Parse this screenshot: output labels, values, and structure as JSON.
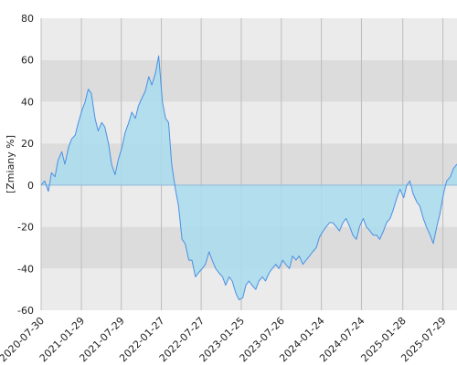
{
  "chart_data": {
    "type": "area",
    "title": "",
    "xlabel": "",
    "ylabel": "[Zmiany %]",
    "ylim": [
      -60,
      80
    ],
    "yticks": [
      -60,
      -40,
      -20,
      0,
      20,
      40,
      60,
      80
    ],
    "xticks": [
      "2020-07-30",
      "2021-01-29",
      "2021-07-29",
      "2022-01-27",
      "2022-07-27",
      "2023-01-25",
      "2023-07-26",
      "2024-01-24",
      "2024-07-24",
      "2025-01-28",
      "2025-07-29"
    ],
    "xlim": [
      "2020-07-30",
      "2025-10-01"
    ],
    "grid": true,
    "background_bands": true,
    "colors": {
      "line": "#4a90e2",
      "fill": "#a8dcef",
      "band_light": "#ebebeb",
      "band_dark": "#dcdcdc",
      "gridline": "#bdbdbd",
      "zero_line": "#8fb8d8"
    },
    "series": [
      {
        "x": [
          "2020-07-30",
          "2020-08-15",
          "2020-09-01",
          "2020-09-15",
          "2020-10-01",
          "2020-10-15",
          "2020-11-01",
          "2020-11-15",
          "2020-12-01",
          "2020-12-15",
          "2021-01-01",
          "2021-01-15",
          "2021-02-01",
          "2021-02-15",
          "2021-03-01",
          "2021-03-15",
          "2021-04-01",
          "2021-04-15",
          "2021-05-01",
          "2021-05-15",
          "2021-06-01",
          "2021-06-15",
          "2021-07-01",
          "2021-07-15",
          "2021-08-01",
          "2021-08-15",
          "2021-09-01",
          "2021-09-15",
          "2021-10-01",
          "2021-10-15",
          "2021-11-01",
          "2021-11-15",
          "2021-12-01",
          "2021-12-15",
          "2022-01-01",
          "2022-01-15",
          "2022-02-01",
          "2022-02-15",
          "2022-03-01",
          "2022-03-15",
          "2022-04-01",
          "2022-04-15",
          "2022-05-01",
          "2022-05-15",
          "2022-06-01",
          "2022-06-15",
          "2022-07-01",
          "2022-07-15",
          "2022-08-01",
          "2022-08-15",
          "2022-09-01",
          "2022-09-15",
          "2022-10-01",
          "2022-10-15",
          "2022-11-01",
          "2022-11-15",
          "2022-12-01",
          "2022-12-15",
          "2023-01-01",
          "2023-01-15",
          "2023-02-01",
          "2023-02-15",
          "2023-03-01",
          "2023-03-15",
          "2023-04-01",
          "2023-04-15",
          "2023-05-01",
          "2023-05-15",
          "2023-06-01",
          "2023-06-15",
          "2023-07-01",
          "2023-07-15",
          "2023-08-01",
          "2023-08-15",
          "2023-09-01",
          "2023-09-15",
          "2023-10-01",
          "2023-10-15",
          "2023-11-01",
          "2023-11-15",
          "2023-12-01",
          "2023-12-15",
          "2024-01-01",
          "2024-01-15",
          "2024-02-01",
          "2024-02-15",
          "2024-03-01",
          "2024-03-15",
          "2024-04-01",
          "2024-04-15",
          "2024-05-01",
          "2024-05-15",
          "2024-06-01",
          "2024-06-15",
          "2024-07-01",
          "2024-07-15",
          "2024-08-01",
          "2024-08-15",
          "2024-09-01",
          "2024-09-15",
          "2024-10-01",
          "2024-10-15",
          "2024-11-01",
          "2024-11-15",
          "2024-12-01",
          "2024-12-15",
          "2025-01-01",
          "2025-01-15",
          "2025-02-01",
          "2025-02-15",
          "2025-03-01",
          "2025-03-15",
          "2025-04-01",
          "2025-04-15",
          "2025-05-01",
          "2025-05-15",
          "2025-06-01",
          "2025-06-15",
          "2025-07-01",
          "2025-07-15",
          "2025-08-01",
          "2025-08-15",
          "2025-09-01",
          "2025-09-15",
          "2025-10-01"
        ],
        "values": [
          0,
          2,
          -3,
          6,
          4,
          12,
          16,
          10,
          18,
          22,
          24,
          30,
          36,
          40,
          46,
          44,
          32,
          26,
          30,
          28,
          20,
          10,
          5,
          12,
          18,
          25,
          30,
          35,
          32,
          38,
          42,
          45,
          52,
          48,
          54,
          62,
          40,
          32,
          30,
          10,
          -2,
          -10,
          -26,
          -28,
          -36,
          -36,
          -44,
          -42,
          -40,
          -38,
          -32,
          -36,
          -40,
          -42,
          -44,
          -48,
          -44,
          -46,
          -52,
          -55,
          -54,
          -48,
          -46,
          -48,
          -50,
          -46,
          -44,
          -46,
          -42,
          -40,
          -38,
          -40,
          -36,
          -38,
          -40,
          -34,
          -36,
          -34,
          -38,
          -36,
          -34,
          -32,
          -30,
          -25,
          -22,
          -20,
          -18,
          -18,
          -20,
          -22,
          -18,
          -16,
          -20,
          -24,
          -26,
          -20,
          -16,
          -20,
          -22,
          -24,
          -24,
          -26,
          -22,
          -18,
          -16,
          -12,
          -6,
          -2,
          -6,
          0,
          2,
          -4,
          -8,
          -10,
          -16,
          -20,
          -24,
          -28,
          -20,
          -14,
          -4,
          2,
          4,
          8,
          10
        ]
      }
    ]
  }
}
